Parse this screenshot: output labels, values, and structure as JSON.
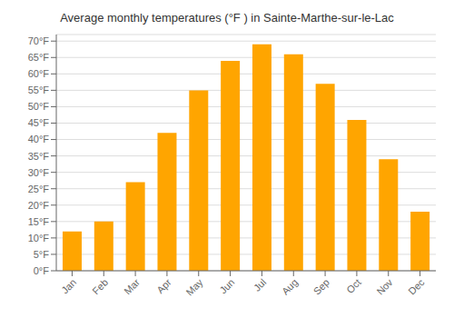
{
  "chart_data": {
    "type": "bar",
    "title": "Average monthly temperatures (°F ) in Sainte-Marthe-sur-le-Lac",
    "categories": [
      "Jan",
      "Feb",
      "Mar",
      "Apr",
      "May",
      "Jun",
      "Jul",
      "Aug",
      "Sep",
      "Oct",
      "Nov",
      "Dec"
    ],
    "values": [
      12,
      15,
      27,
      42,
      55,
      64,
      69,
      66,
      57,
      46,
      34,
      18
    ],
    "color": "#FFA500",
    "ylim": [
      0,
      72
    ],
    "yticks": [
      {
        "value": 0,
        "label": "0°F"
      },
      {
        "value": 5,
        "label": "5°F"
      },
      {
        "value": 10,
        "label": "10°F"
      },
      {
        "value": 15,
        "label": "15°F"
      },
      {
        "value": 20,
        "label": "20°F"
      },
      {
        "value": 25,
        "label": "25°F"
      },
      {
        "value": 30,
        "label": "30°F"
      },
      {
        "value": 35,
        "label": "35°F"
      },
      {
        "value": 40,
        "label": "40°F"
      },
      {
        "value": 45,
        "label": "45°F"
      },
      {
        "value": 50,
        "label": "50°F"
      },
      {
        "value": 55,
        "label": "55°F"
      },
      {
        "value": 60,
        "label": "60°F"
      },
      {
        "value": 65,
        "label": "65°F"
      },
      {
        "value": 70,
        "label": "70°F"
      }
    ],
    "grid": true
  }
}
